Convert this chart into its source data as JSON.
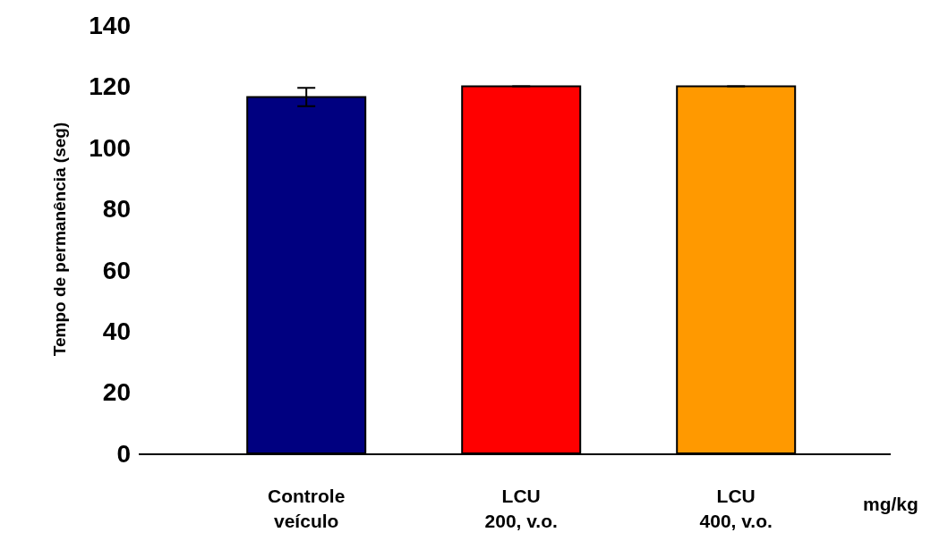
{
  "chart_data": {
    "type": "bar",
    "ylabel": "Tempo de permanência (seg)",
    "categories": [
      "Controle\nveículo",
      "LCU\n200, v.o.",
      "LCU\n400, v.o."
    ],
    "values": [
      116.5,
      120,
      120
    ],
    "colors": [
      "#000080",
      "#ff0000",
      "#ff9900"
    ],
    "errors": [
      3,
      null,
      null
    ],
    "ylim": [
      0,
      140
    ],
    "yticks": [
      0,
      20,
      40,
      60,
      80,
      100,
      120,
      140
    ],
    "grid": false,
    "annotations": [
      "mg/kg"
    ]
  }
}
